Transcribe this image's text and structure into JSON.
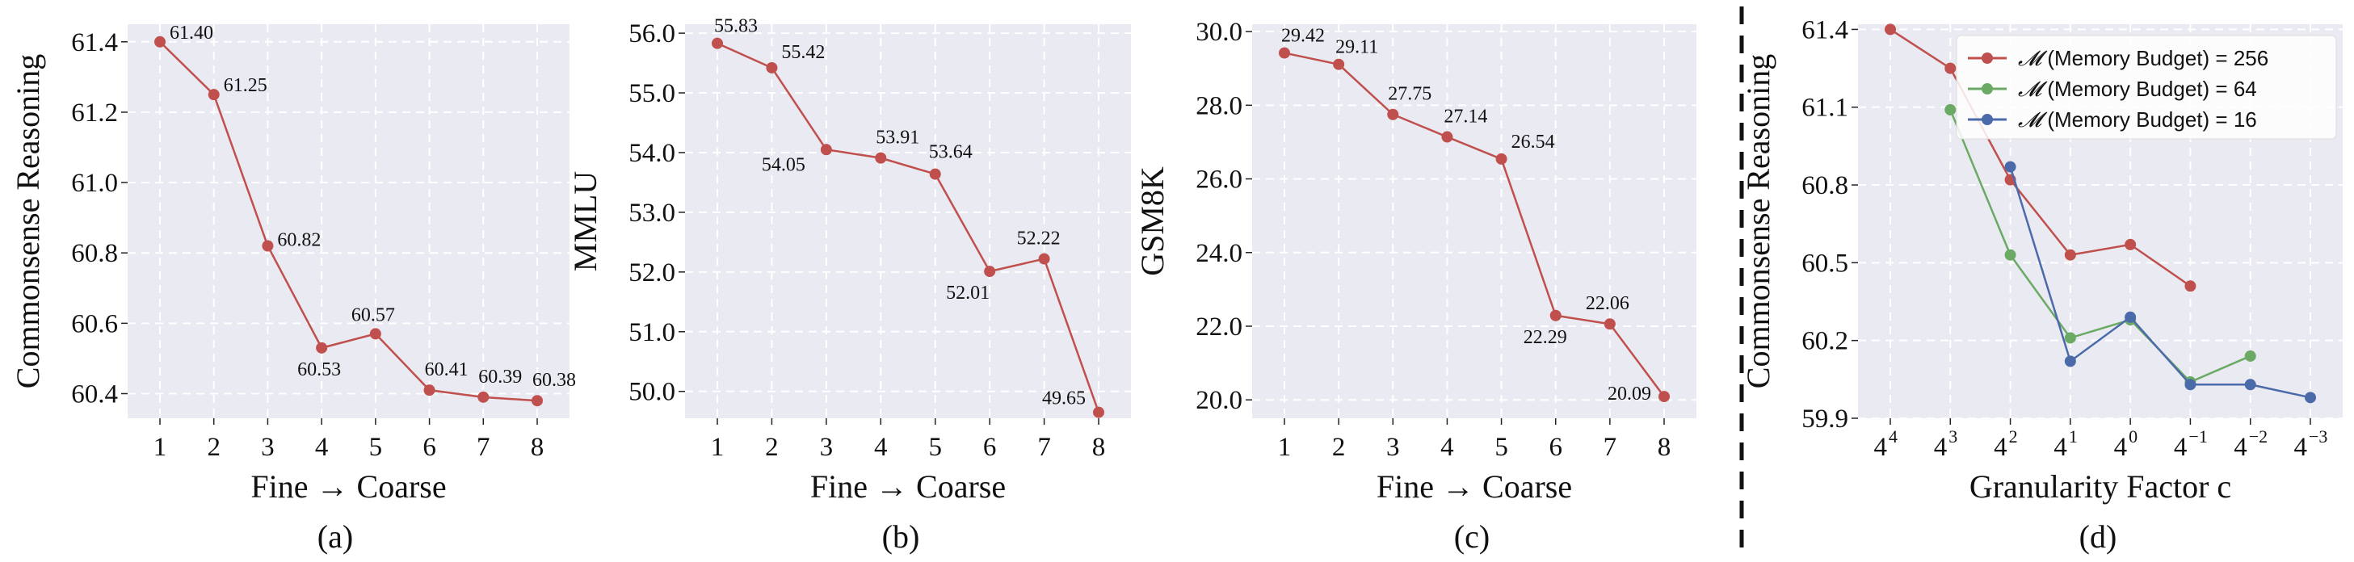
{
  "colors": {
    "red": "#c0504d",
    "green": "#6aaa64",
    "blue": "#4a6aaa",
    "panel_background": "#eaeaf2",
    "grid": "#ffffff"
  },
  "chart_data": [
    {
      "id": "a",
      "type": "line",
      "caption": "(a)",
      "xlabel": "Fine → Coarse",
      "ylabel": "Commonsense Reasoning",
      "x": [
        1,
        2,
        3,
        4,
        5,
        6,
        7,
        8
      ],
      "xticks": [
        "1",
        "2",
        "3",
        "4",
        "5",
        "6",
        "7",
        "8"
      ],
      "ylim": [
        60.33,
        61.45
      ],
      "yticks": [
        60.4,
        60.6,
        60.8,
        61.0,
        61.2,
        61.4
      ],
      "ytick_labels": [
        "60.4",
        "60.6",
        "60.8",
        "61.0",
        "61.2",
        "61.4"
      ],
      "grid": true,
      "series": [
        {
          "color": "#c0504d",
          "values": [
            61.4,
            61.25,
            60.82,
            60.53,
            60.57,
            60.41,
            60.39,
            60.38
          ],
          "labels": [
            "61.40",
            "61.25",
            "60.82",
            "60.53",
            "60.57",
            "60.41",
            "60.39",
            "60.38"
          ]
        }
      ]
    },
    {
      "id": "b",
      "type": "line",
      "caption": "(b)",
      "xlabel": "Fine → Coarse",
      "ylabel": "MMLU",
      "x": [
        1,
        2,
        3,
        4,
        5,
        6,
        7,
        8
      ],
      "xticks": [
        "1",
        "2",
        "3",
        "4",
        "5",
        "6",
        "7",
        "8"
      ],
      "ylim": [
        49.55,
        56.15
      ],
      "yticks": [
        50.0,
        51.0,
        52.0,
        53.0,
        54.0,
        55.0,
        56.0
      ],
      "ytick_labels": [
        "50.0",
        "51.0",
        "52.0",
        "53.0",
        "54.0",
        "55.0",
        "56.0"
      ],
      "grid": true,
      "series": [
        {
          "color": "#c0504d",
          "values": [
            55.83,
            55.42,
            54.05,
            53.91,
            53.64,
            52.01,
            52.22,
            49.65
          ],
          "labels": [
            "55.83",
            "55.42",
            "54.05",
            "53.91",
            "53.64",
            "52.01",
            "52.22",
            "49.65"
          ]
        }
      ]
    },
    {
      "id": "c",
      "type": "line",
      "caption": "(c)",
      "xlabel": "Fine → Coarse",
      "ylabel": "GSM8K",
      "x": [
        1,
        2,
        3,
        4,
        5,
        6,
        7,
        8
      ],
      "xticks": [
        "1",
        "2",
        "3",
        "4",
        "5",
        "6",
        "7",
        "8"
      ],
      "ylim": [
        19.5,
        30.2
      ],
      "yticks": [
        20.0,
        22.0,
        24.0,
        26.0,
        28.0,
        30.0
      ],
      "ytick_labels": [
        "20.0",
        "22.0",
        "24.0",
        "26.0",
        "28.0",
        "30.0"
      ],
      "grid": true,
      "series": [
        {
          "color": "#c0504d",
          "values": [
            29.42,
            29.11,
            27.75,
            27.14,
            26.54,
            22.29,
            22.06,
            20.09
          ],
          "labels": [
            "29.42",
            "29.11",
            "27.75",
            "27.14",
            "26.54",
            "22.29",
            "22.06",
            "20.09"
          ]
        }
      ]
    },
    {
      "id": "d",
      "type": "line",
      "caption": "(d)",
      "xlabel": "Granularity Factor c",
      "ylabel": "Commonsense Reasoning",
      "x": [
        4,
        3,
        2,
        1,
        0,
        -1,
        -2,
        -3
      ],
      "xticks": [
        "4",
        "3",
        "2",
        "1",
        "0",
        "−1",
        "−2",
        "−3"
      ],
      "xtick_base": "4",
      "ylim": [
        59.9,
        61.42
      ],
      "yticks": [
        59.9,
        60.2,
        60.5,
        60.8,
        61.1,
        61.4
      ],
      "ytick_labels": [
        "59.9",
        "60.2",
        "60.5",
        "60.8",
        "61.1",
        "61.4"
      ],
      "grid": true,
      "legend_position": "top-right",
      "series": [
        {
          "name_prefix": "𝓜",
          "name": " (Memory Budget) = 256",
          "color": "#c0504d",
          "x": [
            4,
            3,
            2,
            1,
            0,
            -1
          ],
          "values": [
            61.4,
            61.25,
            60.82,
            60.53,
            60.57,
            60.41
          ]
        },
        {
          "name_prefix": "𝓜",
          "name": " (Memory Budget) = 64",
          "color": "#6aaa64",
          "x": [
            3,
            2,
            1,
            0,
            -1,
            -2
          ],
          "values": [
            61.09,
            60.53,
            60.21,
            60.28,
            60.04,
            60.14
          ]
        },
        {
          "name_prefix": "𝓜",
          "name": " (Memory Budget) = 16",
          "color": "#4a6aaa",
          "x": [
            2,
            1,
            0,
            -1,
            -2,
            -3
          ],
          "values": [
            60.87,
            60.12,
            60.29,
            60.03,
            60.03,
            59.98
          ]
        }
      ]
    }
  ]
}
